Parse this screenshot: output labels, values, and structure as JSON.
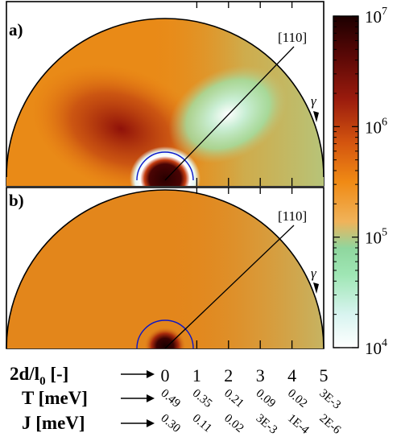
{
  "chart_data": [
    {
      "type": "heatmap",
      "panel_label": "a)",
      "direction_label": "[110]",
      "gamma_label": "γ",
      "shape": "semicircle polar map",
      "colormap": [
        "#ffffff",
        "#d8f4f0",
        "#9fe6b4",
        "#8fd69e",
        "#f0b35a",
        "#f08a14",
        "#d3540f",
        "#9a1b0d",
        "#5a0806",
        "#1c0000"
      ],
      "features": [
        "dark red lobe around origin",
        "light green/white region near [110] direction",
        "white ring surrounding origin"
      ]
    },
    {
      "type": "heatmap",
      "panel_label": "b)",
      "direction_label": "[110]",
      "gamma_label": "γ",
      "shape": "semicircle polar map",
      "colormap": [
        "#ffffff",
        "#d8f4f0",
        "#9fe6b4",
        "#8fd69e",
        "#f0b35a",
        "#f08a14",
        "#d3540f",
        "#9a1b0d",
        "#5a0806",
        "#1c0000"
      ],
      "features": [
        "mostly uniform orange",
        "slight green toward right side",
        "dark spot at origin"
      ]
    }
  ],
  "colorbar": {
    "scale": "log",
    "range": [
      10000,
      10000000
    ],
    "ticks": [
      {
        "base": "10",
        "exp": "4",
        "value": 10000
      },
      {
        "base": "10",
        "exp": "5",
        "value": 100000
      },
      {
        "base": "10",
        "exp": "6",
        "value": 1000000
      },
      {
        "base": "10",
        "exp": "7",
        "value": 10000000
      }
    ]
  },
  "axis": {
    "rows": [
      {
        "label_main": "2d/l",
        "label_sub": "0",
        "label_rest": " [-]",
        "values": [
          "0",
          "1",
          "2",
          "3",
          "4",
          "5"
        ],
        "numeric": [
          0,
          1,
          2,
          3,
          4,
          5
        ]
      },
      {
        "label_main": "T [meV]",
        "values": [
          "0.49",
          "0.35",
          "0.21",
          "0.09",
          "0.02",
          "3E-3"
        ]
      },
      {
        "label_main": "J [meV]",
        "values": [
          "0.30",
          "0.11",
          "0.02",
          "3E-3",
          "1E-4",
          "2E-6"
        ]
      }
    ],
    "arrow_glyph": "→"
  }
}
